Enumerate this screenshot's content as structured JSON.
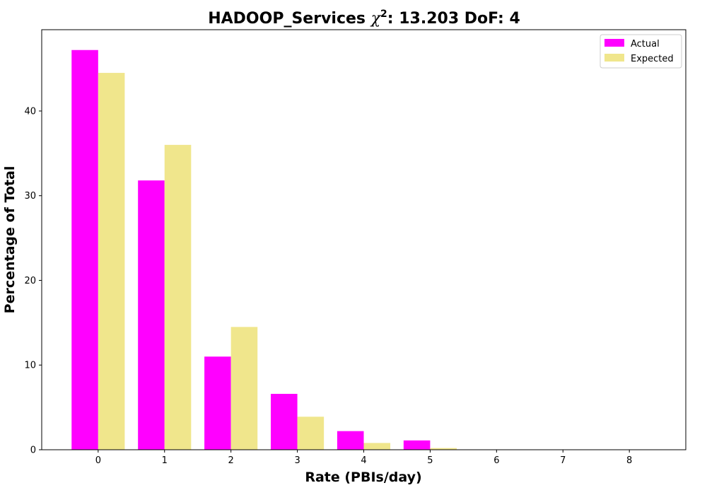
{
  "chart_data": {
    "type": "bar",
    "title_prefix": "HADOOP_Services ",
    "title_chi": "χ",
    "title_sup": "2",
    "title_suffix": ": 13.203 DoF: 4",
    "xlabel": "Rate (PBIs/day)",
    "ylabel": "Percentage of Total",
    "categories": [
      "0",
      "1",
      "2",
      "3",
      "4",
      "5",
      "6",
      "7",
      "8"
    ],
    "x": [
      0,
      1,
      2,
      3,
      4,
      5,
      6,
      7,
      8
    ],
    "xlim": [
      -0.85,
      8.85
    ],
    "ylim": [
      0,
      49.6
    ],
    "yticks": [
      0,
      10,
      20,
      30,
      40
    ],
    "grid": false,
    "legend_position": "top-right",
    "series": [
      {
        "name": "Actual",
        "color": "#ff00ff",
        "values": [
          47.2,
          31.8,
          11.0,
          6.6,
          2.2,
          1.1,
          0,
          0,
          0
        ]
      },
      {
        "name": "Expected",
        "color": "#f0e68c",
        "values": [
          44.5,
          36.0,
          14.5,
          3.9,
          0.8,
          0.2,
          0.02,
          0.0,
          0.0
        ]
      }
    ]
  }
}
